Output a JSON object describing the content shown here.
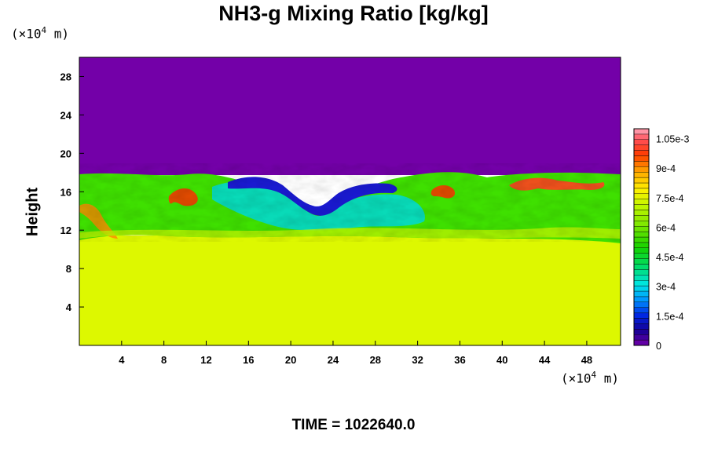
{
  "title": "NH3-g Mixing Ratio [kg/kg]",
  "unit_y": {
    "prefix": "(×10",
    "exp": "4",
    "suffix": " m)"
  },
  "unit_x": {
    "prefix": "(×10",
    "exp": "4",
    "suffix": " m)"
  },
  "time_label": "TIME = 1022640.0",
  "chart_data": {
    "type": "heatmap",
    "title": "NH3-g Mixing Ratio [kg/kg]",
    "xlabel": "",
    "ylabel": "Height",
    "x_unit": "(×10^4 m)",
    "y_unit": "(×10^4 m)",
    "xlim": [
      0,
      51.2
    ],
    "ylim": [
      0,
      30
    ],
    "x_ticks": [
      4,
      8,
      12,
      16,
      20,
      24,
      28,
      32,
      36,
      40,
      44,
      48
    ],
    "y_ticks": [
      4,
      8,
      12,
      16,
      20,
      24,
      28
    ],
    "colorbar": {
      "min": 0,
      "max": 0.0011,
      "tick_values": [
        0,
        0.00015,
        0.0003,
        0.00045,
        0.0006,
        0.00075,
        0.0009,
        0.00105
      ],
      "tick_labels": [
        "0",
        "1.5e-4",
        "3e-4",
        "4.5e-4",
        "6e-4",
        "7.5e-4",
        "9e-4",
        "1.05e-3"
      ]
    },
    "regions": [
      {
        "name": "lower layer",
        "height_range": [
          0,
          11
        ],
        "value": 0.0008
      },
      {
        "name": "mixing layer",
        "height_range": [
          11,
          18.3
        ],
        "value_range": [
          0.0001,
          0.0011
        ]
      },
      {
        "name": "upper layer",
        "height_range": [
          18.3,
          30
        ],
        "value": 0
      }
    ],
    "interface_profile": {
      "x": [
        0,
        4,
        8,
        10,
        12,
        14,
        16,
        18,
        20,
        22,
        23,
        24,
        26,
        28,
        30,
        32,
        34,
        36,
        40,
        44,
        48,
        51.2
      ],
      "top_height": [
        18.2,
        18.1,
        18.3,
        18.0,
        18.2,
        18.1,
        17.6,
        17.4,
        16.5,
        15.0,
        13.9,
        14.5,
        16.0,
        17.0,
        17.4,
        17.8,
        17.6,
        18.0,
        18.2,
        18.1,
        18.2,
        18.2
      ]
    },
    "time": 1022640.0
  }
}
